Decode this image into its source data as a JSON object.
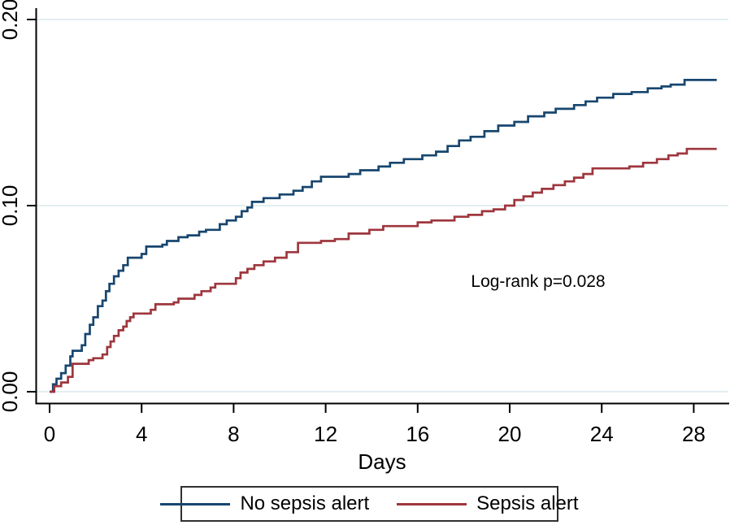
{
  "figure": {
    "kind": "kaplan-meier cumulative incidence plot",
    "background": "#ffffff"
  },
  "chart_data": {
    "type": "line",
    "subtype": "step-survival",
    "title": "",
    "xlabel": "Days",
    "ylabel": "",
    "xlim": [
      0,
      29
    ],
    "ylim": [
      0,
      0.2
    ],
    "grid": "horizontal gridlines at each y tick, light blue",
    "legend_position": "bottom center, boxed",
    "x_ticks": [
      {
        "value": 0,
        "label": "0"
      },
      {
        "value": 4,
        "label": "4"
      },
      {
        "value": 8,
        "label": "8"
      },
      {
        "value": 12,
        "label": "12"
      },
      {
        "value": 16,
        "label": "16"
      },
      {
        "value": 20,
        "label": "20"
      },
      {
        "value": 24,
        "label": "24"
      },
      {
        "value": 28,
        "label": "28"
      }
    ],
    "y_ticks": [
      {
        "value": 0.0,
        "label": "0.00"
      },
      {
        "value": 0.1,
        "label": "0.10"
      },
      {
        "value": 0.2,
        "label": "0.20"
      }
    ],
    "annotations": [
      {
        "text": "Log-rank p=0.028",
        "x_day": 21.2,
        "y_value": 0.059
      }
    ],
    "colors": {
      "gridline": "#e3edf1",
      "axis": "#000000",
      "legend_border": "#303030",
      "background": "#ffffff"
    },
    "series": [
      {
        "id": "no-sepsis-alert",
        "name": "No sepsis alert",
        "color": "#17466f",
        "points": [
          [
            0,
            0
          ],
          [
            0.15,
            0.004
          ],
          [
            0.3,
            0.007
          ],
          [
            0.5,
            0.01
          ],
          [
            0.7,
            0.014
          ],
          [
            0.9,
            0.019
          ],
          [
            1.0,
            0.022
          ],
          [
            1.4,
            0.025
          ],
          [
            1.55,
            0.031
          ],
          [
            1.75,
            0.036
          ],
          [
            1.9,
            0.04
          ],
          [
            2.1,
            0.046
          ],
          [
            2.3,
            0.049
          ],
          [
            2.45,
            0.054
          ],
          [
            2.6,
            0.058
          ],
          [
            2.8,
            0.062
          ],
          [
            3.0,
            0.065
          ],
          [
            3.2,
            0.068
          ],
          [
            3.4,
            0.072
          ],
          [
            4.0,
            0.074
          ],
          [
            4.2,
            0.078
          ],
          [
            4.9,
            0.079
          ],
          [
            5.1,
            0.081
          ],
          [
            5.6,
            0.083
          ],
          [
            6.0,
            0.084
          ],
          [
            6.5,
            0.086
          ],
          [
            6.8,
            0.087
          ],
          [
            7.4,
            0.09
          ],
          [
            7.7,
            0.092
          ],
          [
            8.1,
            0.094
          ],
          [
            8.35,
            0.097
          ],
          [
            8.6,
            0.099
          ],
          [
            8.8,
            0.102
          ],
          [
            9.3,
            0.104
          ],
          [
            10.0,
            0.106
          ],
          [
            10.6,
            0.108
          ],
          [
            11.0,
            0.11
          ],
          [
            11.4,
            0.113
          ],
          [
            11.8,
            0.1155
          ],
          [
            13.0,
            0.117
          ],
          [
            13.5,
            0.119
          ],
          [
            14.3,
            0.121
          ],
          [
            14.8,
            0.123
          ],
          [
            15.4,
            0.125
          ],
          [
            16.2,
            0.127
          ],
          [
            16.8,
            0.129
          ],
          [
            17.3,
            0.132
          ],
          [
            17.8,
            0.135
          ],
          [
            18.3,
            0.137
          ],
          [
            18.9,
            0.14
          ],
          [
            19.5,
            0.143
          ],
          [
            20.2,
            0.145
          ],
          [
            20.8,
            0.148
          ],
          [
            21.5,
            0.15
          ],
          [
            22.0,
            0.152
          ],
          [
            22.8,
            0.154
          ],
          [
            23.3,
            0.156
          ],
          [
            23.8,
            0.158
          ],
          [
            24.5,
            0.16
          ],
          [
            25.3,
            0.161
          ],
          [
            26.0,
            0.163
          ],
          [
            26.6,
            0.164
          ],
          [
            27.0,
            0.165
          ],
          [
            27.6,
            0.1675
          ],
          [
            29.0,
            0.1675
          ]
        ]
      },
      {
        "id": "sepsis-alert",
        "name": "Sepsis alert",
        "color": "#9e363d",
        "points": [
          [
            0,
            0
          ],
          [
            0.2,
            0.003
          ],
          [
            0.5,
            0.005
          ],
          [
            0.8,
            0.008
          ],
          [
            1.0,
            0.015
          ],
          [
            1.7,
            0.017
          ],
          [
            1.9,
            0.018
          ],
          [
            2.3,
            0.02
          ],
          [
            2.5,
            0.024
          ],
          [
            2.65,
            0.027
          ],
          [
            2.8,
            0.03
          ],
          [
            3.0,
            0.033
          ],
          [
            3.2,
            0.035
          ],
          [
            3.35,
            0.038
          ],
          [
            3.5,
            0.04
          ],
          [
            3.65,
            0.042
          ],
          [
            4.4,
            0.044
          ],
          [
            4.6,
            0.047
          ],
          [
            5.4,
            0.048
          ],
          [
            5.6,
            0.05
          ],
          [
            6.3,
            0.052
          ],
          [
            6.6,
            0.054
          ],
          [
            7.0,
            0.056
          ],
          [
            7.2,
            0.058
          ],
          [
            8.1,
            0.061
          ],
          [
            8.3,
            0.064
          ],
          [
            8.6,
            0.066
          ],
          [
            8.9,
            0.068
          ],
          [
            9.3,
            0.07
          ],
          [
            9.8,
            0.072
          ],
          [
            10.3,
            0.075
          ],
          [
            10.8,
            0.08
          ],
          [
            11.8,
            0.081
          ],
          [
            12.4,
            0.082
          ],
          [
            13.0,
            0.085
          ],
          [
            13.9,
            0.087
          ],
          [
            14.5,
            0.089
          ],
          [
            16.0,
            0.091
          ],
          [
            16.6,
            0.092
          ],
          [
            17.6,
            0.094
          ],
          [
            18.2,
            0.095
          ],
          [
            18.8,
            0.097
          ],
          [
            19.3,
            0.098
          ],
          [
            19.8,
            0.1
          ],
          [
            20.2,
            0.103
          ],
          [
            20.6,
            0.105
          ],
          [
            21.0,
            0.107
          ],
          [
            21.4,
            0.109
          ],
          [
            21.9,
            0.111
          ],
          [
            22.4,
            0.113
          ],
          [
            22.8,
            0.115
          ],
          [
            23.2,
            0.117
          ],
          [
            23.6,
            0.12
          ],
          [
            25.2,
            0.121
          ],
          [
            25.8,
            0.123
          ],
          [
            26.4,
            0.125
          ],
          [
            26.9,
            0.127
          ],
          [
            27.3,
            0.128
          ],
          [
            27.7,
            0.1305
          ],
          [
            29.0,
            0.1305
          ]
        ]
      }
    ]
  }
}
